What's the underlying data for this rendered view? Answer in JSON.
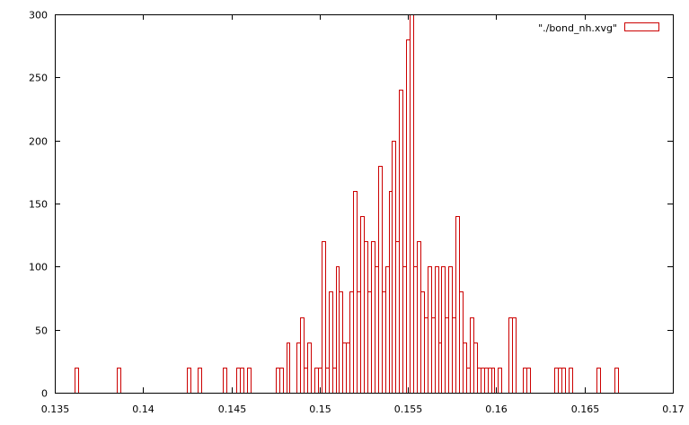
{
  "chart_data": {
    "type": "bar",
    "title": "",
    "xlabel": "",
    "ylabel": "",
    "xlim": [
      0.135,
      0.17
    ],
    "ylim": [
      0,
      300
    ],
    "bin_width": 0.0002,
    "x_ticks": [
      "0.135",
      "0.14",
      "0.145",
      "0.15",
      "0.155",
      "0.16",
      "0.165",
      "0.17"
    ],
    "y_ticks": [
      "0",
      "50",
      "100",
      "150",
      "200",
      "250",
      "300"
    ],
    "grid": false,
    "legend_position": "top-right",
    "series": [
      {
        "name": "\"./bond_nh.xvg\"",
        "color": "#cc0000",
        "x": [
          0.1362,
          0.1386,
          0.1426,
          0.1432,
          0.1446,
          0.1454,
          0.1456,
          0.146,
          0.1476,
          0.1478,
          0.1482,
          0.1488,
          0.149,
          0.1492,
          0.1494,
          0.1498,
          0.15,
          0.1502,
          0.1504,
          0.1506,
          0.1508,
          0.151,
          0.1512,
          0.1514,
          0.1516,
          0.1518,
          0.152,
          0.1522,
          0.1524,
          0.1526,
          0.1528,
          0.153,
          0.1532,
          0.1534,
          0.1536,
          0.1538,
          0.154,
          0.1542,
          0.1544,
          0.1546,
          0.1548,
          0.155,
          0.1552,
          0.1554,
          0.1556,
          0.1558,
          0.156,
          0.1562,
          0.1564,
          0.1566,
          0.1568,
          0.157,
          0.1572,
          0.1574,
          0.1576,
          0.1578,
          0.158,
          0.1582,
          0.1584,
          0.1586,
          0.1588,
          0.159,
          0.1592,
          0.1594,
          0.1596,
          0.1598,
          0.1602,
          0.1608,
          0.161,
          0.1616,
          0.1618,
          0.1634,
          0.1636,
          0.1638,
          0.1642,
          0.1658,
          0.1668
        ],
        "values": [
          20,
          20,
          20,
          20,
          20,
          20,
          20,
          20,
          20,
          20,
          40,
          40,
          60,
          20,
          40,
          20,
          20,
          120,
          20,
          80,
          20,
          100,
          80,
          40,
          40,
          80,
          160,
          80,
          140,
          120,
          80,
          120,
          100,
          180,
          80,
          100,
          160,
          200,
          120,
          240,
          100,
          280,
          300,
          100,
          120,
          80,
          60,
          100,
          60,
          100,
          40,
          100,
          60,
          100,
          60,
          140,
          80,
          40,
          20,
          60,
          40,
          20,
          20,
          20,
          20,
          20,
          20,
          60,
          60,
          20,
          20,
          20,
          20,
          20,
          20,
          20,
          20
        ]
      }
    ]
  }
}
